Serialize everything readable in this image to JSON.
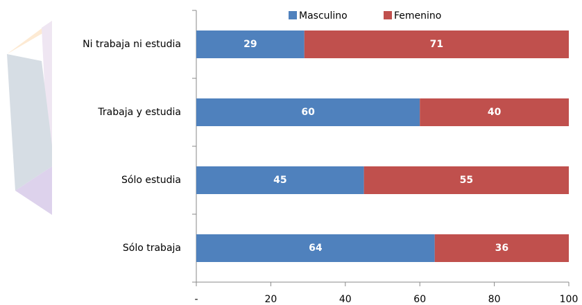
{
  "chart_data": {
    "type": "stacked-bar-horizontal",
    "categories": [
      "Ni trabaja ni estudia",
      "Trabaja y estudia",
      "Sólo estudia",
      "Sólo trabaja"
    ],
    "series": [
      {
        "name": "Masculino",
        "color": "#4f81bd",
        "values": [
          29,
          60,
          45,
          64
        ]
      },
      {
        "name": "Femenino",
        "color": "#c0504d",
        "values": [
          71,
          40,
          55,
          36
        ]
      }
    ],
    "xlim": [
      0,
      100
    ],
    "xticks": [
      {
        "value": 0,
        "label": "-"
      },
      20,
      40,
      60,
      80,
      100
    ],
    "legend": "top"
  }
}
